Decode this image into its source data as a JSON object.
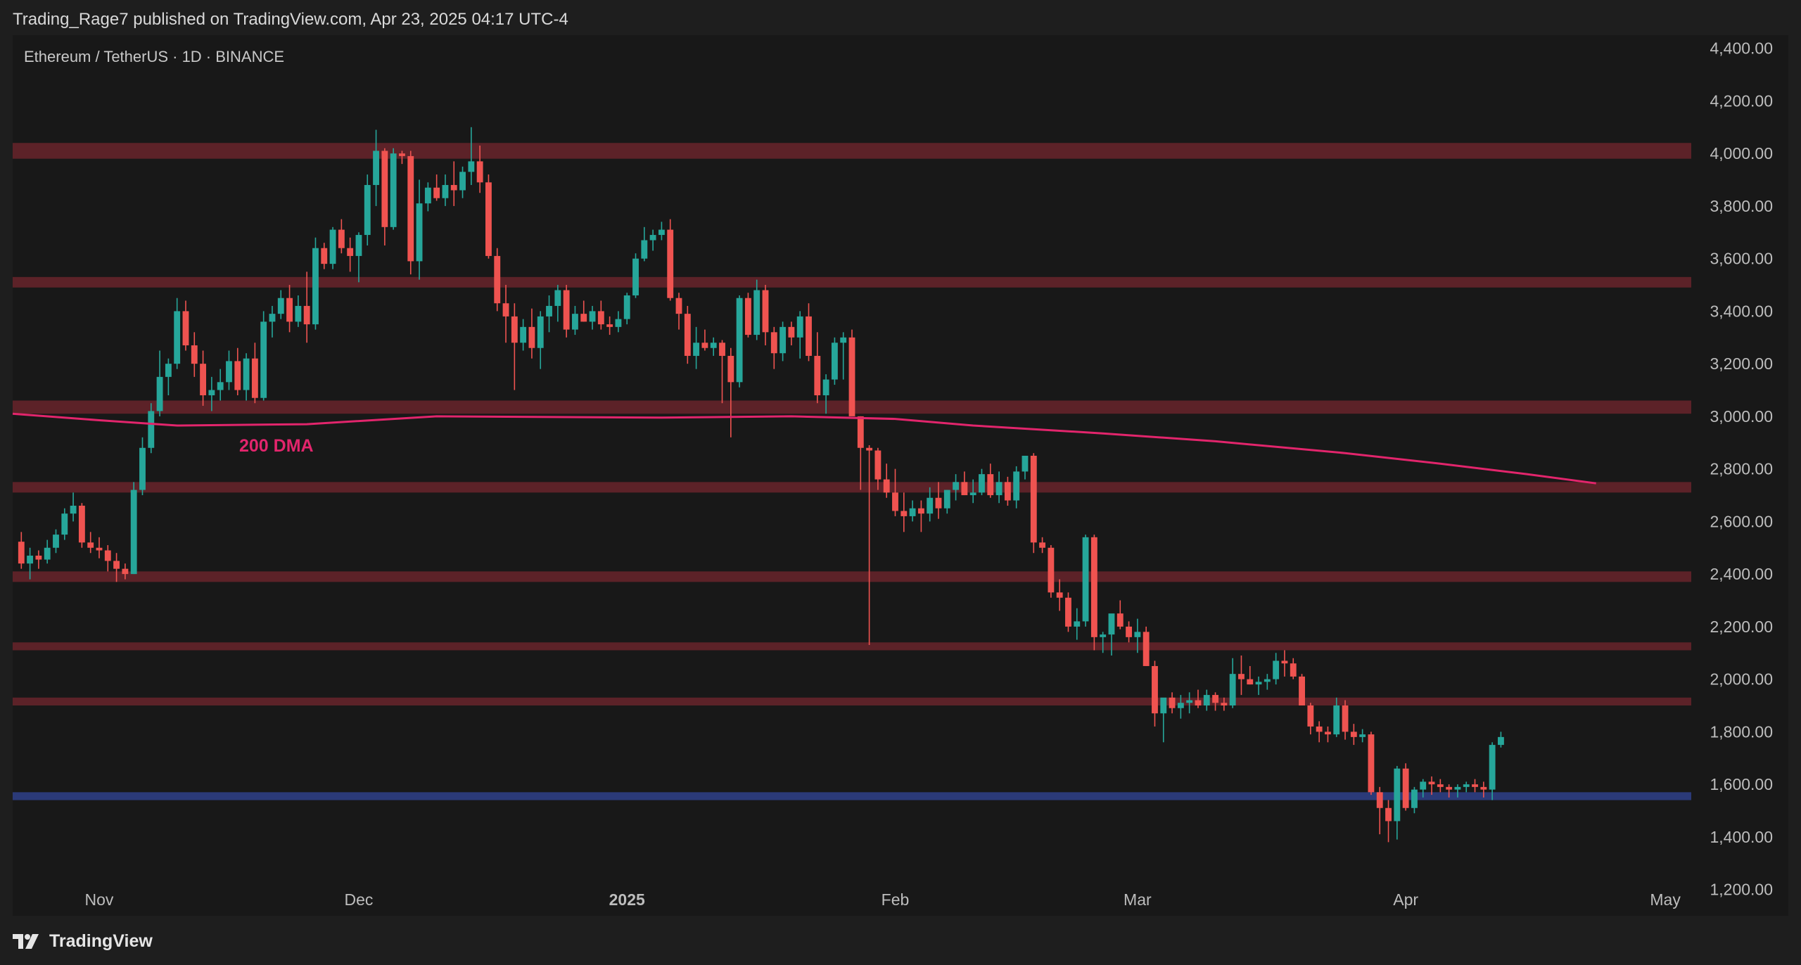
{
  "header": {
    "published": "Trading_Rage7 published on TradingView.com, Apr 23, 2025 04:17 UTC-4"
  },
  "footer": {
    "brand": "TradingView",
    "logo_icon": "tradingview-logo-icon"
  },
  "colors": {
    "background": "#1e1e1e",
    "pane": "#181818",
    "up": "#26a69a",
    "down": "#ef5350",
    "zone": "#5c2228",
    "support": "#2b3a78",
    "dma": "#e2256c",
    "axis_text": "#bdbdbd"
  },
  "chart_data": {
    "type": "candlestick",
    "title": "Ethereum / TetherUS · 1D · BINANCE",
    "y_ticks": [
      "4,400.00",
      "4,200.00",
      "4,000.00",
      "3,800.00",
      "3,600.00",
      "3,400.00",
      "3,200.00",
      "3,000.00",
      "2,800.00",
      "2,600.00",
      "2,400.00",
      "2,200.00",
      "2,000.00",
      "1,800.00",
      "1,600.00",
      "1,400.00",
      "1,200.00"
    ],
    "x_ticks": [
      {
        "label": "Nov",
        "date": "2024-11-01"
      },
      {
        "label": "Dec",
        "date": "2024-12-01"
      },
      {
        "label": "2025",
        "date": "2025-01-01",
        "bold": true
      },
      {
        "label": "Feb",
        "date": "2025-02-01"
      },
      {
        "label": "Mar",
        "date": "2025-03-01"
      },
      {
        "label": "Apr",
        "date": "2025-04-01"
      },
      {
        "label": "May",
        "date": "2025-05-01"
      }
    ],
    "ylim": [
      1100,
      4450
    ],
    "xlim": [
      "2024-10-22",
      "2025-05-04"
    ],
    "first_date": "2024-10-23",
    "ohlc": [
      [
        2523,
        2560,
        2420,
        2440
      ],
      [
        2440,
        2500,
        2380,
        2470
      ],
      [
        2470,
        2490,
        2420,
        2455
      ],
      [
        2455,
        2530,
        2440,
        2500
      ],
      [
        2500,
        2570,
        2480,
        2550
      ],
      [
        2550,
        2650,
        2530,
        2630
      ],
      [
        2630,
        2710,
        2600,
        2660
      ],
      [
        2660,
        2670,
        2500,
        2520
      ],
      [
        2520,
        2560,
        2480,
        2500
      ],
      [
        2500,
        2540,
        2460,
        2490
      ],
      [
        2490,
        2510,
        2410,
        2450
      ],
      [
        2450,
        2480,
        2370,
        2420
      ],
      [
        2420,
        2440,
        2380,
        2400
      ],
      [
        2400,
        2750,
        2400,
        2720
      ],
      [
        2720,
        2920,
        2700,
        2880
      ],
      [
        2880,
        3050,
        2860,
        3020
      ],
      [
        3020,
        3250,
        3000,
        3150
      ],
      [
        3150,
        3220,
        3080,
        3200
      ],
      [
        3200,
        3450,
        3180,
        3400
      ],
      [
        3400,
        3440,
        3250,
        3270
      ],
      [
        3270,
        3320,
        3150,
        3200
      ],
      [
        3200,
        3250,
        3040,
        3080
      ],
      [
        3080,
        3150,
        3020,
        3100
      ],
      [
        3100,
        3180,
        3060,
        3130
      ],
      [
        3130,
        3250,
        3100,
        3210
      ],
      [
        3210,
        3260,
        3080,
        3100
      ],
      [
        3100,
        3240,
        3060,
        3220
      ],
      [
        3220,
        3280,
        3050,
        3070
      ],
      [
        3070,
        3400,
        3060,
        3360
      ],
      [
        3360,
        3420,
        3300,
        3390
      ],
      [
        3390,
        3480,
        3370,
        3450
      ],
      [
        3450,
        3500,
        3320,
        3360
      ],
      [
        3360,
        3460,
        3340,
        3420
      ],
      [
        3420,
        3550,
        3280,
        3350
      ],
      [
        3350,
        3680,
        3330,
        3640
      ],
      [
        3640,
        3660,
        3560,
        3580
      ],
      [
        3580,
        3720,
        3560,
        3710
      ],
      [
        3710,
        3750,
        3620,
        3640
      ],
      [
        3640,
        3680,
        3550,
        3610
      ],
      [
        3610,
        3700,
        3510,
        3690
      ],
      [
        3690,
        3920,
        3650,
        3880
      ],
      [
        3880,
        4090,
        3800,
        4010
      ],
      [
        4010,
        4020,
        3650,
        3720
      ],
      [
        3720,
        4020,
        3710,
        4000
      ],
      [
        4000,
        4010,
        3960,
        3990
      ],
      [
        3990,
        4010,
        3540,
        3590
      ],
      [
        3590,
        3900,
        3520,
        3810
      ],
      [
        3810,
        3890,
        3780,
        3870
      ],
      [
        3870,
        3920,
        3820,
        3830
      ],
      [
        3830,
        3920,
        3800,
        3880
      ],
      [
        3880,
        3970,
        3800,
        3860
      ],
      [
        3860,
        3950,
        3830,
        3930
      ],
      [
        3930,
        4100,
        3880,
        3970
      ],
      [
        3970,
        4030,
        3850,
        3890
      ],
      [
        3890,
        3920,
        3600,
        3610
      ],
      [
        3610,
        3640,
        3400,
        3430
      ],
      [
        3430,
        3500,
        3280,
        3380
      ],
      [
        3380,
        3430,
        3100,
        3280
      ],
      [
        3280,
        3370,
        3250,
        3340
      ],
      [
        3340,
        3410,
        3220,
        3260
      ],
      [
        3260,
        3400,
        3180,
        3380
      ],
      [
        3380,
        3460,
        3320,
        3420
      ],
      [
        3420,
        3500,
        3360,
        3480
      ],
      [
        3480,
        3500,
        3300,
        3330
      ],
      [
        3330,
        3420,
        3310,
        3390
      ],
      [
        3390,
        3440,
        3360,
        3360
      ],
      [
        3360,
        3420,
        3330,
        3400
      ],
      [
        3400,
        3440,
        3330,
        3350
      ],
      [
        3350,
        3380,
        3310,
        3340
      ],
      [
        3340,
        3400,
        3320,
        3370
      ],
      [
        3370,
        3470,
        3350,
        3460
      ],
      [
        3460,
        3620,
        3450,
        3600
      ],
      [
        3600,
        3720,
        3590,
        3670
      ],
      [
        3670,
        3710,
        3630,
        3690
      ],
      [
        3690,
        3740,
        3670,
        3710
      ],
      [
        3710,
        3750,
        3440,
        3450
      ],
      [
        3450,
        3470,
        3330,
        3390
      ],
      [
        3390,
        3420,
        3200,
        3230
      ],
      [
        3230,
        3340,
        3180,
        3280
      ],
      [
        3280,
        3330,
        3250,
        3260
      ],
      [
        3260,
        3300,
        3230,
        3280
      ],
      [
        3280,
        3290,
        3050,
        3230
      ],
      [
        3230,
        3260,
        2920,
        3130
      ],
      [
        3130,
        3460,
        3110,
        3450
      ],
      [
        3450,
        3470,
        3300,
        3310
      ],
      [
        3310,
        3520,
        3290,
        3480
      ],
      [
        3480,
        3500,
        3270,
        3320
      ],
      [
        3320,
        3340,
        3180,
        3240
      ],
      [
        3240,
        3360,
        3210,
        3340
      ],
      [
        3340,
        3360,
        3270,
        3300
      ],
      [
        3300,
        3400,
        3220,
        3380
      ],
      [
        3380,
        3430,
        3210,
        3230
      ],
      [
        3230,
        3320,
        3050,
        3080
      ],
      [
        3080,
        3160,
        3010,
        3140
      ],
      [
        3140,
        3300,
        3120,
        3280
      ],
      [
        3280,
        3320,
        3140,
        3300
      ],
      [
        3300,
        3330,
        3020,
        3000
      ],
      [
        3000,
        3000,
        2720,
        2880
      ],
      [
        2880,
        2890,
        2130,
        2870
      ],
      [
        2870,
        2880,
        2720,
        2760
      ],
      [
        2760,
        2820,
        2690,
        2710
      ],
      [
        2710,
        2800,
        2620,
        2640
      ],
      [
        2640,
        2710,
        2560,
        2620
      ],
      [
        2620,
        2680,
        2600,
        2650
      ],
      [
        2650,
        2680,
        2560,
        2630
      ],
      [
        2630,
        2730,
        2600,
        2690
      ],
      [
        2690,
        2750,
        2610,
        2650
      ],
      [
        2650,
        2720,
        2630,
        2720
      ],
      [
        2720,
        2780,
        2680,
        2750
      ],
      [
        2750,
        2790,
        2700,
        2700
      ],
      [
        2700,
        2760,
        2670,
        2710
      ],
      [
        2710,
        2800,
        2700,
        2780
      ],
      [
        2780,
        2820,
        2690,
        2700
      ],
      [
        2700,
        2790,
        2670,
        2750
      ],
      [
        2750,
        2770,
        2660,
        2680
      ],
      [
        2680,
        2810,
        2650,
        2790
      ],
      [
        2790,
        2850,
        2760,
        2850
      ],
      [
        2850,
        2860,
        2480,
        2520
      ],
      [
        2520,
        2540,
        2480,
        2500
      ],
      [
        2500,
        2510,
        2310,
        2330
      ],
      [
        2330,
        2380,
        2260,
        2310
      ],
      [
        2310,
        2330,
        2180,
        2200
      ],
      [
        2200,
        2270,
        2150,
        2220
      ],
      [
        2220,
        2550,
        2200,
        2540
      ],
      [
        2540,
        2550,
        2110,
        2160
      ],
      [
        2160,
        2180,
        2100,
        2170
      ],
      [
        2170,
        2240,
        2090,
        2250
      ],
      [
        2250,
        2300,
        2190,
        2200
      ],
      [
        2200,
        2220,
        2140,
        2160
      ],
      [
        2160,
        2230,
        2100,
        2180
      ],
      [
        2180,
        2200,
        2050,
        2050
      ],
      [
        2050,
        2070,
        1820,
        1870
      ],
      [
        1870,
        1900,
        1760,
        1930
      ],
      [
        1930,
        1950,
        1870,
        1890
      ],
      [
        1890,
        1940,
        1850,
        1910
      ],
      [
        1910,
        1950,
        1870,
        1920
      ],
      [
        1920,
        1960,
        1890,
        1900
      ],
      [
        1900,
        1960,
        1880,
        1940
      ],
      [
        1940,
        1950,
        1880,
        1910
      ],
      [
        1910,
        1930,
        1880,
        1900
      ],
      [
        1900,
        2080,
        1890,
        2020
      ],
      [
        2020,
        2090,
        1940,
        2000
      ],
      [
        2000,
        2050,
        1980,
        1980
      ],
      [
        1980,
        2010,
        1940,
        1990
      ],
      [
        1990,
        2020,
        1960,
        2000
      ],
      [
        2000,
        2100,
        1980,
        2070
      ],
      [
        2070,
        2110,
        2010,
        2060
      ],
      [
        2060,
        2080,
        2000,
        2010
      ],
      [
        2010,
        2020,
        1900,
        1900
      ],
      [
        1900,
        1910,
        1790,
        1820
      ],
      [
        1820,
        1840,
        1760,
        1800
      ],
      [
        1800,
        1820,
        1760,
        1790
      ],
      [
        1790,
        1930,
        1780,
        1900
      ],
      [
        1900,
        1920,
        1770,
        1800
      ],
      [
        1800,
        1830,
        1750,
        1780
      ],
      [
        1780,
        1810,
        1760,
        1790
      ],
      [
        1790,
        1800,
        1560,
        1570
      ],
      [
        1570,
        1590,
        1410,
        1510
      ],
      [
        1510,
        1540,
        1380,
        1460
      ],
      [
        1460,
        1670,
        1390,
        1660
      ],
      [
        1660,
        1680,
        1500,
        1510
      ],
      [
        1510,
        1590,
        1490,
        1580
      ],
      [
        1580,
        1620,
        1550,
        1610
      ],
      [
        1610,
        1630,
        1560,
        1600
      ],
      [
        1600,
        1620,
        1570,
        1590
      ],
      [
        1590,
        1600,
        1550,
        1580
      ],
      [
        1580,
        1600,
        1550,
        1590
      ],
      [
        1590,
        1610,
        1570,
        1600
      ],
      [
        1600,
        1620,
        1570,
        1590
      ],
      [
        1590,
        1610,
        1550,
        1580
      ],
      [
        1580,
        1760,
        1540,
        1750
      ],
      [
        1750,
        1800,
        1740,
        1780
      ]
    ],
    "zones": [
      [
        3980,
        4040
      ],
      [
        3490,
        3530
      ],
      [
        3010,
        3060
      ],
      [
        2710,
        2750
      ],
      [
        2370,
        2410
      ],
      [
        2110,
        2140
      ],
      [
        1900,
        1930
      ]
    ],
    "support_zone": [
      1540,
      1570
    ],
    "dma_label": "200 DMA",
    "dma_points": [
      [
        "2024-10-22",
        3010
      ],
      [
        "2024-11-01",
        2985
      ],
      [
        "2024-11-10",
        2965
      ],
      [
        "2024-11-25",
        2970
      ],
      [
        "2024-12-10",
        3000
      ],
      [
        "2025-01-05",
        2995
      ],
      [
        "2025-01-20",
        3000
      ],
      [
        "2025-02-01",
        2990
      ],
      [
        "2025-02-10",
        2965
      ],
      [
        "2025-02-25",
        2935
      ],
      [
        "2025-03-10",
        2905
      ],
      [
        "2025-03-25",
        2860
      ],
      [
        "2025-04-05",
        2820
      ],
      [
        "2025-04-15",
        2780
      ],
      [
        "2025-04-23",
        2745
      ]
    ]
  }
}
